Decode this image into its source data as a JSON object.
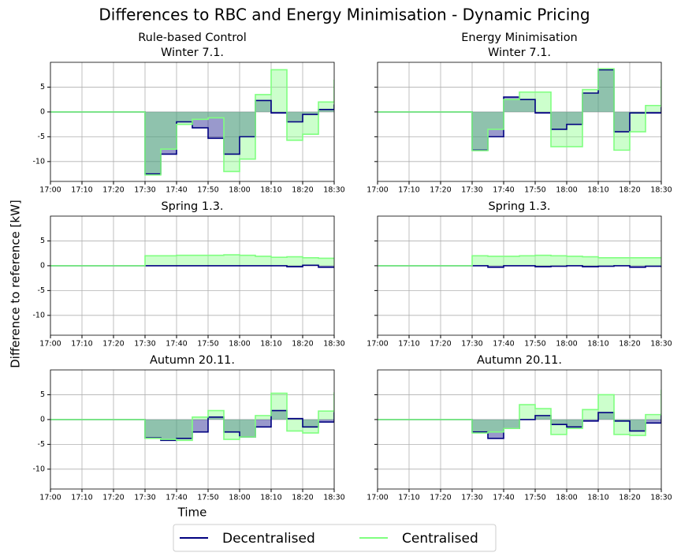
{
  "figure": {
    "title": "Differences to RBC and Energy Minimisation - Dynamic Pricing",
    "ylabel": "Difference to reference [kW]",
    "xlabel": "Time"
  },
  "chart_data": [
    {
      "type": "line",
      "step": "post",
      "fill_to_zero": true,
      "column_title": "Rule-based Control",
      "title": "Winter 7.1.",
      "x": [
        "17:00",
        "17:05",
        "17:10",
        "17:15",
        "17:20",
        "17:25",
        "17:30",
        "17:35",
        "17:40",
        "17:45",
        "17:50",
        "17:55",
        "18:00",
        "18:05",
        "18:10",
        "18:15",
        "18:20",
        "18:25",
        "18:30"
      ],
      "series": [
        {
          "name": "Decentralised",
          "color": "#000080",
          "values": [
            0,
            0,
            0,
            0,
            0,
            0,
            -12.5,
            -8.5,
            -2,
            -3.2,
            -5.3,
            -8.5,
            -5,
            2.3,
            -0.2,
            -2,
            -0.5,
            0.5,
            1.5
          ]
        },
        {
          "name": "Centralised",
          "color": "#80ff80",
          "values": [
            0,
            0,
            0,
            0,
            0,
            0,
            -12.7,
            -7.5,
            -2.5,
            -1.5,
            -1.2,
            -12,
            -9.5,
            3.5,
            8.5,
            -5.7,
            -4.5,
            2,
            6.5
          ]
        }
      ],
      "xlim": [
        "17:00",
        "18:30"
      ],
      "xticks": [
        "17:00",
        "17:10",
        "17:20",
        "17:30",
        "17:40",
        "17:50",
        "18:00",
        "18:10",
        "18:20",
        "18:30"
      ],
      "ylim": [
        -14,
        10
      ],
      "yticks": [
        -10,
        -5,
        0,
        5
      ],
      "grid": true
    },
    {
      "type": "line",
      "step": "post",
      "fill_to_zero": true,
      "column_title": "Energy Minimisation",
      "title": "Winter 7.1.",
      "x": [
        "17:00",
        "17:05",
        "17:10",
        "17:15",
        "17:20",
        "17:25",
        "17:30",
        "17:35",
        "17:40",
        "17:45",
        "17:50",
        "17:55",
        "18:00",
        "18:05",
        "18:10",
        "18:15",
        "18:20",
        "18:25",
        "18:30"
      ],
      "series": [
        {
          "color": "#000080",
          "values": [
            0,
            0,
            0,
            0,
            0,
            0,
            -7.7,
            -5,
            3,
            2.5,
            -0.2,
            -3.5,
            -2.5,
            3.8,
            8.5,
            -4,
            -0.2,
            -0.2,
            1
          ]
        },
        {
          "color": "#80ff80",
          "values": [
            0,
            0,
            0,
            0,
            0,
            0,
            -7.8,
            -3.5,
            2.5,
            4,
            4,
            -7,
            -7,
            4.5,
            8.7,
            -7.7,
            -4,
            1.3,
            6.5
          ]
        }
      ],
      "xlim": [
        "17:00",
        "18:30"
      ],
      "xticks": [
        "17:00",
        "17:10",
        "17:20",
        "17:30",
        "17:40",
        "17:50",
        "18:00",
        "18:10",
        "18:20",
        "18:30"
      ],
      "ylim": [
        -14,
        10
      ],
      "yticks": [
        -10,
        -5,
        0,
        5
      ],
      "grid": true
    },
    {
      "type": "line",
      "step": "post",
      "fill_to_zero": true,
      "title": "Spring 1.3.",
      "x": [
        "17:00",
        "17:05",
        "17:10",
        "17:15",
        "17:20",
        "17:25",
        "17:30",
        "17:35",
        "17:40",
        "17:45",
        "17:50",
        "17:55",
        "18:00",
        "18:05",
        "18:10",
        "18:15",
        "18:20",
        "18:25",
        "18:30"
      ],
      "series": [
        {
          "color": "#000080",
          "values": [
            0,
            0,
            0,
            0,
            0,
            0,
            0,
            0,
            0,
            0,
            0,
            0,
            0,
            0,
            0,
            -0.2,
            0.1,
            -0.3,
            -0.3
          ]
        },
        {
          "color": "#80ff80",
          "values": [
            0,
            0,
            0,
            0,
            0,
            0,
            2,
            2,
            2.1,
            2.1,
            2.1,
            2.2,
            2.1,
            1.9,
            1.7,
            1.8,
            1.6,
            1.5,
            1.5
          ]
        }
      ],
      "xlim": [
        "17:00",
        "18:30"
      ],
      "xticks": [
        "17:00",
        "17:10",
        "17:20",
        "17:30",
        "17:40",
        "17:50",
        "18:00",
        "18:10",
        "18:20",
        "18:30"
      ],
      "ylim": [
        -14,
        10
      ],
      "yticks": [
        -10,
        -5,
        0,
        5
      ],
      "grid": true
    },
    {
      "type": "line",
      "step": "post",
      "fill_to_zero": true,
      "title": "Spring 1.3.",
      "x": [
        "17:00",
        "17:05",
        "17:10",
        "17:15",
        "17:20",
        "17:25",
        "17:30",
        "17:35",
        "17:40",
        "17:45",
        "17:50",
        "17:55",
        "18:00",
        "18:05",
        "18:10",
        "18:15",
        "18:20",
        "18:25",
        "18:30"
      ],
      "series": [
        {
          "color": "#000080",
          "values": [
            0,
            0,
            0,
            0,
            0,
            0,
            0,
            -0.3,
            0,
            0,
            -0.2,
            -0.1,
            0,
            -0.2,
            -0.1,
            0,
            -0.3,
            -0.1,
            -0.3
          ]
        },
        {
          "color": "#80ff80",
          "values": [
            0,
            0,
            0,
            0,
            0,
            0,
            2,
            1.9,
            1.9,
            2,
            2.1,
            2,
            1.9,
            1.8,
            1.6,
            1.6,
            1.6,
            1.6,
            1.8
          ]
        }
      ],
      "xlim": [
        "17:00",
        "18:30"
      ],
      "xticks": [
        "17:00",
        "17:10",
        "17:20",
        "17:30",
        "17:40",
        "17:50",
        "18:00",
        "18:10",
        "18:20",
        "18:30"
      ],
      "ylim": [
        -14,
        10
      ],
      "yticks": [
        -10,
        -5,
        0,
        5
      ],
      "grid": true
    },
    {
      "type": "line",
      "step": "post",
      "fill_to_zero": true,
      "title": "Autumn 20.11.",
      "x": [
        "17:00",
        "17:05",
        "17:10",
        "17:15",
        "17:20",
        "17:25",
        "17:30",
        "17:35",
        "17:40",
        "17:45",
        "17:50",
        "17:55",
        "18:00",
        "18:05",
        "18:10",
        "18:15",
        "18:20",
        "18:25",
        "18:30"
      ],
      "series": [
        {
          "color": "#000080",
          "values": [
            0,
            0,
            0,
            0,
            0,
            0,
            -3.7,
            -4.2,
            -3.8,
            -2.5,
            0.5,
            -2.5,
            -3.5,
            -1.5,
            1.8,
            0.2,
            -1.5,
            -0.5,
            1.5
          ]
        },
        {
          "color": "#80ff80",
          "values": [
            0,
            0,
            0,
            0,
            0,
            0,
            -3.8,
            -4,
            -4.2,
            0.5,
            1.8,
            -4,
            -3.5,
            0.8,
            5.3,
            -2.3,
            -2.7,
            1.7,
            5.5
          ]
        }
      ],
      "xlim": [
        "17:00",
        "18:30"
      ],
      "xticks": [
        "17:00",
        "17:10",
        "17:20",
        "17:30",
        "17:40",
        "17:50",
        "18:00",
        "18:10",
        "18:20",
        "18:30"
      ],
      "ylim": [
        -14,
        10
      ],
      "yticks": [
        -10,
        -5,
        0,
        5
      ],
      "grid": true
    },
    {
      "type": "line",
      "step": "post",
      "fill_to_zero": true,
      "title": "Autumn 20.11.",
      "x": [
        "17:00",
        "17:05",
        "17:10",
        "17:15",
        "17:20",
        "17:25",
        "17:30",
        "17:35",
        "17:40",
        "17:45",
        "17:50",
        "17:55",
        "18:00",
        "18:05",
        "18:10",
        "18:15",
        "18:20",
        "18:25",
        "18:30"
      ],
      "series": [
        {
          "color": "#000080",
          "values": [
            0,
            0,
            0,
            0,
            0,
            0,
            -2.5,
            -3.8,
            -1.8,
            0,
            0.8,
            -1,
            -1.5,
            -0.3,
            1.4,
            -0.3,
            -2.3,
            -0.7,
            1.2
          ]
        },
        {
          "color": "#80ff80",
          "values": [
            0,
            0,
            0,
            0,
            0,
            0,
            -2.7,
            -2.5,
            -1.8,
            3,
            2.2,
            -3,
            -1.8,
            2,
            5,
            -3,
            -3.2,
            1,
            6
          ]
        }
      ],
      "xlim": [
        "17:00",
        "18:30"
      ],
      "xticks": [
        "17:00",
        "17:10",
        "17:20",
        "17:30",
        "17:40",
        "17:50",
        "18:00",
        "18:10",
        "18:20",
        "18:30"
      ],
      "ylim": [
        -14,
        10
      ],
      "yticks": [
        -10,
        -5,
        0,
        5
      ],
      "grid": true
    }
  ]
}
